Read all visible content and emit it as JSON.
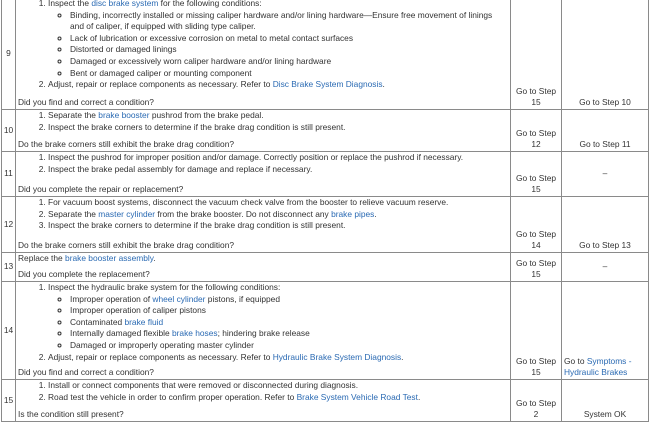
{
  "rows": [
    {
      "step": "9",
      "items": [
        {
          "segs": [
            {
              "t": "Inspect the "
            },
            {
              "t": "disc brake system",
              "link": true
            },
            {
              "t": " for the following conditions:"
            }
          ],
          "sub": [
            [
              {
                "t": "Binding, incorrectly installed or missing caliper hardware and/or lining hardware—Ensure free movement of linings and of caliper, if equipped with sliding type caliper."
              }
            ],
            [
              {
                "t": "Lack of lubrication or excessive corrosion on metal to metal contact surfaces"
              }
            ],
            [
              {
                "t": "Distorted or damaged linings"
              }
            ],
            [
              {
                "t": "Damaged or excessively worn caliper hardware and/or lining hardware"
              }
            ],
            [
              {
                "t": "Bent or damaged caliper or mounting component"
              }
            ]
          ]
        },
        {
          "segs": [
            {
              "t": "Adjust, repair or replace components as necessary. Refer to "
            },
            {
              "t": "Disc Brake System Diagnosis",
              "link": true
            },
            {
              "t": "."
            }
          ]
        }
      ],
      "question": "Did you find and correct a condition?",
      "yes": "Go to Step 15",
      "no": [
        {
          "t": "Go to Step 10"
        }
      ]
    },
    {
      "step": "10",
      "items": [
        {
          "segs": [
            {
              "t": "Separate the "
            },
            {
              "t": "brake booster",
              "link": true
            },
            {
              "t": " pushrod from the brake pedal."
            }
          ]
        },
        {
          "segs": [
            {
              "t": "Inspect the brake corners to determine if the brake drag condition is still present."
            }
          ]
        }
      ],
      "question": "Do the brake corners still exhibit the brake drag condition?",
      "yes": "Go to Step 12",
      "no": [
        {
          "t": "Go to Step 11"
        }
      ]
    },
    {
      "step": "11",
      "items": [
        {
          "segs": [
            {
              "t": "Inspect the pushrod for improper position and/or damage. Correctly position or replace the pushrod if necessary."
            }
          ]
        },
        {
          "segs": [
            {
              "t": "Inspect the brake pedal assembly for damage and replace if necessary."
            }
          ]
        }
      ],
      "question": "Did you complete the repair or replacement?",
      "yes": "Go to Step 15",
      "no": [
        {
          "t": "–"
        }
      ]
    },
    {
      "step": "12",
      "items": [
        {
          "segs": [
            {
              "t": "For vacuum boost systems, disconnect the vacuum check valve from the booster to relieve vacuum reserve."
            }
          ]
        },
        {
          "segs": [
            {
              "t": "Separate the "
            },
            {
              "t": "master cylinder",
              "link": true
            },
            {
              "t": " from the brake booster. Do not disconnect any "
            },
            {
              "t": "brake pipes",
              "link": true
            },
            {
              "t": "."
            }
          ]
        },
        {
          "segs": [
            {
              "t": "Inspect the brake corners to determine if the brake drag condition is still present."
            }
          ]
        }
      ],
      "question": "Do the brake corners still exhibit the brake drag condition?",
      "yes": "Go to Step 14",
      "no": [
        {
          "t": "Go to Step 13"
        }
      ]
    },
    {
      "step": "13",
      "para": [
        {
          "t": "Replace the "
        },
        {
          "t": "brake booster assembly",
          "link": true
        },
        {
          "t": "."
        }
      ],
      "question": "Did you complete the replacement?",
      "yes": "Go to Step 15",
      "no": [
        {
          "t": "–"
        }
      ]
    },
    {
      "step": "14",
      "items": [
        {
          "segs": [
            {
              "t": "Inspect the hydraulic brake system for the following conditions:"
            }
          ],
          "sub": [
            [
              {
                "t": "Improper operation of "
              },
              {
                "t": "wheel cylinder",
                "link": true
              },
              {
                "t": " pistons, if equipped"
              }
            ],
            [
              {
                "t": "Improper operation of caliper pistons"
              }
            ],
            [
              {
                "t": "Contaminated "
              },
              {
                "t": "brake fluid",
                "link": true
              }
            ],
            [
              {
                "t": "Internally damaged flexible "
              },
              {
                "t": "brake hoses",
                "link": true
              },
              {
                "t": "; hindering brake release"
              }
            ],
            [
              {
                "t": "Damaged or improperly operating master cylinder"
              }
            ]
          ]
        },
        {
          "segs": [
            {
              "t": "Adjust, repair or replace components as necessary. Refer to "
            },
            {
              "t": "Hydraulic Brake System Diagnosis",
              "link": true
            },
            {
              "t": "."
            }
          ]
        }
      ],
      "question": "Did you find and correct a condition?",
      "yes": "Go to Step 15",
      "no": [
        {
          "t": "Go to "
        },
        {
          "t": "Symptoms - Hydraulic Brakes",
          "link": true
        }
      ]
    },
    {
      "step": "15",
      "items": [
        {
          "segs": [
            {
              "t": "Install or connect components that were removed or disconnected during diagnosis."
            }
          ]
        },
        {
          "segs": [
            {
              "t": "Road test the vehicle in order to confirm proper operation. Refer to "
            },
            {
              "t": "Brake System Vehicle Road Test",
              "link": true
            },
            {
              "t": "."
            }
          ]
        }
      ],
      "question": "Is the condition still present?",
      "yes": "Go to Step 2",
      "no": [
        {
          "t": "System OK"
        }
      ]
    }
  ],
  "colors": {
    "link": "#2a6ab3",
    "text": "#333333",
    "border": "#8a8a8a"
  }
}
